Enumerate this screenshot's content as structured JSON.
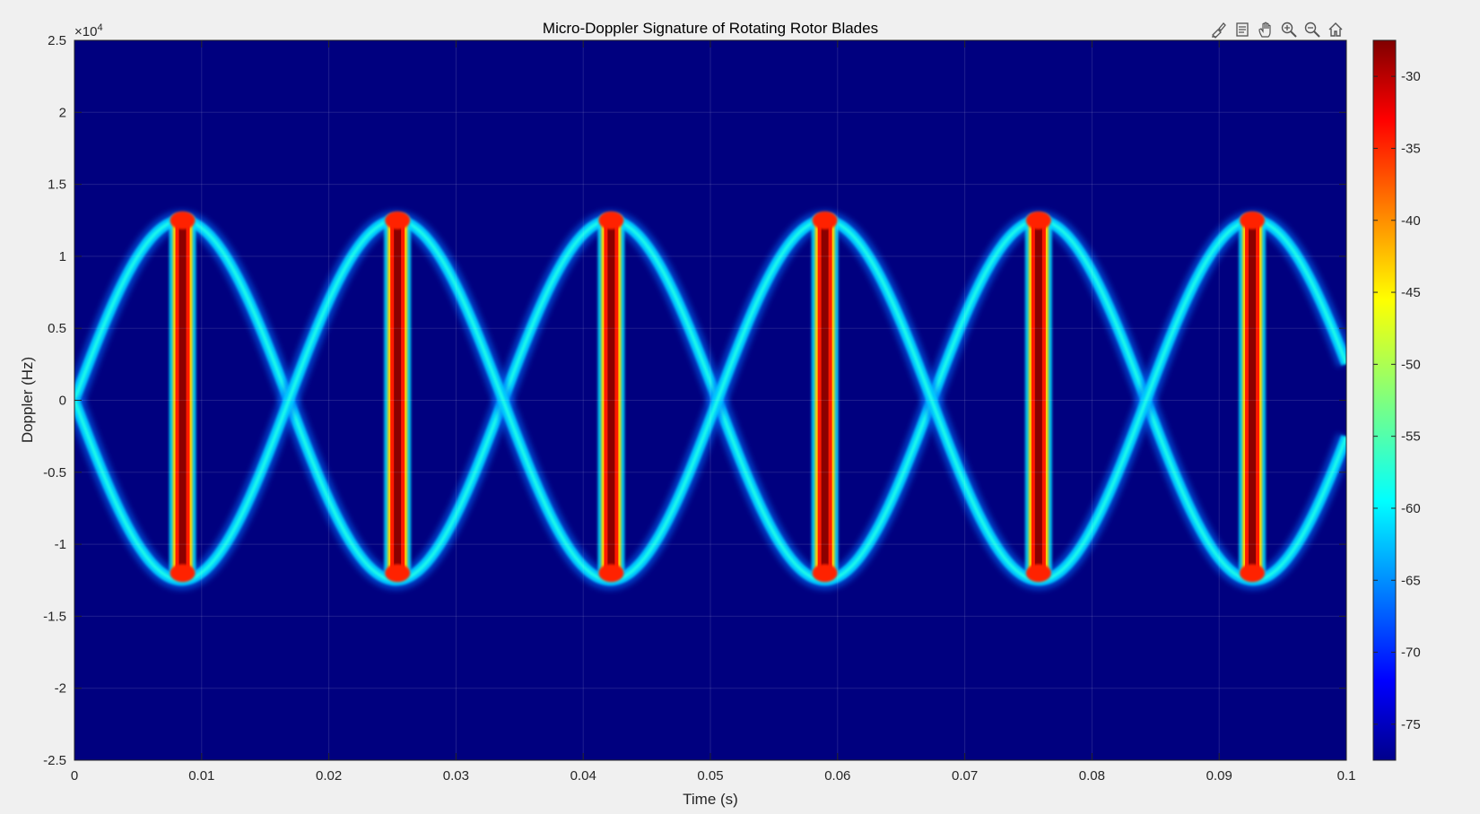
{
  "toolbar": {
    "buttons": [
      "brush-icon",
      "datatip-icon",
      "pan-hand-icon",
      "zoom-in-icon",
      "zoom-out-icon",
      "home-icon"
    ]
  },
  "colors": {
    "background": "#f0f0f0",
    "colormap": "jet"
  },
  "chart_data": {
    "type": "heatmap",
    "title": "Micro-Doppler Signature of Rotating Rotor Blades",
    "xlabel": "Time (s)",
    "ylabel": "Doppler (Hz)",
    "y_exponent_label": "×10",
    "y_exponent_power": "4",
    "xlim": [
      0,
      0.1
    ],
    "ylim": [
      -25000,
      25000
    ],
    "x_ticks": [
      0,
      0.01,
      0.02,
      0.03,
      0.04,
      0.05,
      0.06,
      0.07,
      0.08,
      0.09,
      0.1
    ],
    "x_tick_labels": [
      "0",
      "0.01",
      "0.02",
      "0.03",
      "0.04",
      "0.05",
      "0.06",
      "0.07",
      "0.08",
      "0.09",
      "0.1"
    ],
    "y_ticks": [
      25000,
      20000,
      15000,
      10000,
      5000,
      0,
      -5000,
      -10000,
      -15000,
      -20000,
      -25000
    ],
    "y_tick_labels": [
      "2.5",
      "2",
      "1.5",
      "1",
      "0.5",
      "0",
      "-0.5",
      "-1",
      "-1.5",
      "-2",
      "-2.5"
    ],
    "grid": true,
    "colorbar": {
      "range": [
        -77.5,
        -27.5
      ],
      "ticks": [
        -30,
        -35,
        -40,
        -45,
        -50,
        -55,
        -60,
        -65,
        -70,
        -75
      ],
      "tick_labels": [
        "-30",
        "-35",
        "-40",
        "-45",
        "-50",
        "-55",
        "-60",
        "-65",
        "-70",
        "-75"
      ],
      "colormap": "jet"
    },
    "blade_flashes": [
      {
        "time": 0.0085,
        "doppler_extent": [
          -12000,
          12500
        ],
        "peak_db": -28
      },
      {
        "time": 0.0254,
        "doppler_extent": [
          -12000,
          12500
        ],
        "peak_db": -28
      },
      {
        "time": 0.0422,
        "doppler_extent": [
          -12000,
          12500
        ],
        "peak_db": -28
      },
      {
        "time": 0.059,
        "doppler_extent": [
          -12000,
          12500
        ],
        "peak_db": -28
      },
      {
        "time": 0.0758,
        "doppler_extent": [
          -12000,
          12500
        ],
        "peak_db": -28
      },
      {
        "time": 0.0926,
        "doppler_extent": [
          -12000,
          12500
        ],
        "peak_db": -28
      }
    ],
    "sinusoid": {
      "amplitude_hz": 12500,
      "period_s": 0.0337,
      "zero_crossings_s": [
        0,
        0.0168,
        0.0337,
        0.0505,
        0.0673,
        0.0842,
        0.1
      ],
      "level_db": -60
    },
    "background_db": -77
  }
}
